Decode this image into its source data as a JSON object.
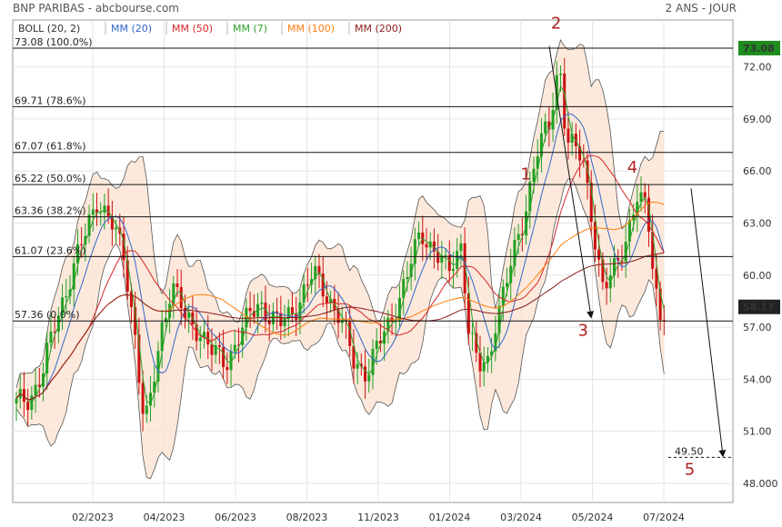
{
  "header": {
    "title": "BNP PARIBAS - abcbourse.com",
    "period": "2 ANS - JOUR"
  },
  "legend": [
    {
      "label": "BOLL (20, 2)",
      "color": "#333333"
    },
    {
      "label": "MM (20)",
      "color": "#3366cc"
    },
    {
      "label": "MM (50)",
      "color": "#d62728"
    },
    {
      "label": "MM (7)",
      "color": "#2ca02c"
    },
    {
      "label": "MM (100)",
      "color": "#ff7f0e"
    },
    {
      "label": "MM (200)",
      "color": "#8b1a1a"
    }
  ],
  "chart_data": {
    "type": "candlestick",
    "ylim": [
      46.9,
      74.7
    ],
    "yticks": [
      "48.000",
      "51.00",
      "54.00",
      "57.00",
      "60.00",
      "63.00",
      "66.00",
      "69.00",
      "72.00"
    ],
    "xticks": [
      "02/2023",
      "04/2023",
      "06/2023",
      "08/2023",
      "11/2023",
      "01/2024",
      "03/2024",
      "05/2024",
      "07/2024"
    ],
    "last_price": "73.08",
    "current_price": "58.17",
    "fib_levels": [
      {
        "value": 73.08,
        "label": "73.08",
        "pct": "(100.0%)"
      },
      {
        "value": 69.71,
        "label": "69.71",
        "pct": "(78.6%)"
      },
      {
        "value": 67.07,
        "label": "67.07",
        "pct": "(61.8%)"
      },
      {
        "value": 65.22,
        "label": "65.22",
        "pct": "(50.0%)"
      },
      {
        "value": 63.36,
        "label": "63.36",
        "pct": "(38.2%)"
      },
      {
        "value": 61.07,
        "label": "61.07",
        "pct": "(23.6%)"
      },
      {
        "value": 57.36,
        "label": "57.36",
        "pct": "(0.0%)"
      }
    ],
    "target_level": {
      "value": 49.5,
      "label": "49.50"
    },
    "waves": [
      {
        "label": "1",
        "t": 0.755,
        "y": 65.5
      },
      {
        "label": "2",
        "t": 0.8,
        "y": 74.2
      },
      {
        "label": "3",
        "t": 0.84,
        "y": 56.5
      },
      {
        "label": "4",
        "t": 0.913,
        "y": 65.9
      },
      {
        "label": "5",
        "t": 0.998,
        "y": 48.5
      }
    ],
    "price_path": [
      [
        0.0,
        52.5
      ],
      [
        0.02,
        53.0
      ],
      [
        0.04,
        54.5
      ],
      [
        0.06,
        57.5
      ],
      [
        0.08,
        60.0
      ],
      [
        0.1,
        62.0
      ],
      [
        0.12,
        64.5
      ],
      [
        0.14,
        63.0
      ],
      [
        0.16,
        61.0
      ],
      [
        0.175,
        57.0
      ],
      [
        0.19,
        51.0
      ],
      [
        0.2,
        53.0
      ],
      [
        0.215,
        57.0
      ],
      [
        0.23,
        59.5
      ],
      [
        0.25,
        57.5
      ],
      [
        0.27,
        57.0
      ],
      [
        0.29,
        55.5
      ],
      [
        0.31,
        55.0
      ],
      [
        0.33,
        56.5
      ],
      [
        0.36,
        58.5
      ],
      [
        0.39,
        57.0
      ],
      [
        0.41,
        58.0
      ],
      [
        0.44,
        60.0
      ],
      [
        0.46,
        59.0
      ],
      [
        0.48,
        57.5
      ],
      [
        0.5,
        55.0
      ],
      [
        0.52,
        54.5
      ],
      [
        0.55,
        57.0
      ],
      [
        0.58,
        60.0
      ],
      [
        0.6,
        62.5
      ],
      [
        0.62,
        61.5
      ],
      [
        0.64,
        60.0
      ],
      [
        0.66,
        62.0
      ],
      [
        0.67,
        57.0
      ],
      [
        0.685,
        54.5
      ],
      [
        0.7,
        55.0
      ],
      [
        0.71,
        57.5
      ],
      [
        0.73,
        60.0
      ],
      [
        0.75,
        63.0
      ],
      [
        0.77,
        67.0
      ],
      [
        0.79,
        68.5
      ],
      [
        0.805,
        72.5
      ],
      [
        0.815,
        68.0
      ],
      [
        0.83,
        67.0
      ],
      [
        0.84,
        66.5
      ],
      [
        0.855,
        63.0
      ],
      [
        0.87,
        59.0
      ],
      [
        0.89,
        60.5
      ],
      [
        0.905,
        62.5
      ],
      [
        0.92,
        64.5
      ],
      [
        0.935,
        63.5
      ],
      [
        0.945,
        60.0
      ],
      [
        0.955,
        57.5
      ],
      [
        0.96,
        58.17
      ]
    ]
  }
}
